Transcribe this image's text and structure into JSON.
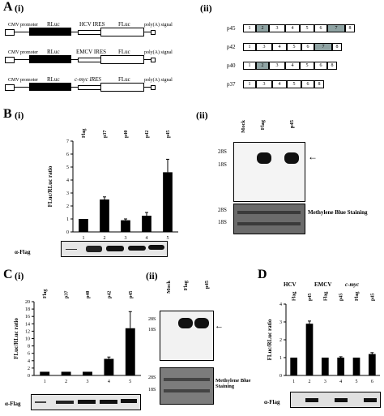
{
  "panelA": {
    "letter": "A",
    "sub_i": "(i)",
    "sub_ii": "(ii)",
    "constructs": [
      {
        "promoter": "CMV promoter",
        "rluc": "RLuc",
        "ires": "HCV IRES",
        "fluc": "FLuc",
        "polya": "poly(A) signal"
      },
      {
        "promoter": "CMV promoter",
        "rluc": "RLuc",
        "ires": "EMCV IRES",
        "fluc": "FLuc",
        "polya": "poly(A) signal"
      },
      {
        "promoter": "CMV promoter",
        "rluc": "RLuc",
        "ires": "c-myc IRES",
        "fluc": "FLuc",
        "polya": "poly(A) signal"
      }
    ],
    "isoforms": [
      {
        "name": "p45",
        "exons": [
          "1",
          "2",
          "3",
          "4",
          "5",
          "6",
          "7",
          "8"
        ]
      },
      {
        "name": "p42",
        "exons": [
          "1",
          "3",
          "4",
          "5",
          "6",
          "7",
          "8"
        ]
      },
      {
        "name": "p40",
        "exons": [
          "1",
          "2",
          "3",
          "4",
          "5",
          "6",
          "8"
        ]
      },
      {
        "name": "p37",
        "exons": [
          "1",
          "3",
          "4",
          "5",
          "6",
          "8"
        ]
      }
    ]
  },
  "panelB": {
    "letter": "B",
    "sub_i": "(i)",
    "sub_ii": "(ii)",
    "ylabel": "FLuc/RLuc ratio",
    "flag_label": "α-Flag",
    "northern_cols": [
      "Mock",
      "Flag",
      "p45"
    ],
    "methylene": "Methylene Blue Staining",
    "rrna": [
      "28S",
      "18S"
    ]
  },
  "panelC": {
    "letter": "C",
    "sub_i": "(i)",
    "sub_ii": "(ii)",
    "ylabel": "FLuc/RLuc ratio",
    "flag_label": "α-Flag",
    "northern_cols": [
      "Mock",
      "Flag",
      "p45"
    ],
    "methylene": "Methylene Blue Staining",
    "rrna": [
      "28S",
      "18S"
    ]
  },
  "panelD": {
    "letter": "D",
    "ylabel": "FLuc/RLuc ratio",
    "flag_label": "α-Flag",
    "groups": [
      "HCV",
      "EMCV",
      "c-myc"
    ]
  },
  "chart_data": [
    {
      "type": "bar",
      "categories": [
        "Flag",
        "p37",
        "p40",
        "p42",
        "p45"
      ],
      "lane_numbers": [
        "1",
        "2",
        "3",
        "4",
        "5"
      ],
      "values": [
        1.0,
        2.5,
        0.9,
        1.25,
        4.6
      ],
      "errors": [
        0,
        0.2,
        0.1,
        0.25,
        1.0
      ],
      "ylabel": "FLuc/RLuc ratio",
      "ylim": [
        0,
        7
      ],
      "yticks": [
        "0",
        "1",
        "2",
        "3",
        "4",
        "5",
        "6",
        "7"
      ]
    },
    {
      "type": "bar",
      "categories": [
        "Flag",
        "p37",
        "p40",
        "p42",
        "p45"
      ],
      "lane_numbers": [
        "1",
        "2",
        "3",
        "4",
        "5"
      ],
      "values": [
        1.0,
        1.0,
        1.0,
        4.5,
        12.8
      ],
      "errors": [
        0,
        0,
        0,
        0.5,
        4.5
      ],
      "ylabel": "FLuc/RLuc ratio",
      "ylim": [
        0,
        20
      ],
      "yticks": [
        "0",
        "2",
        "4",
        "6",
        "8",
        "10",
        "12",
        "14",
        "16",
        "18",
        "20"
      ]
    },
    {
      "type": "bar",
      "categories": [
        "Flag",
        "p45",
        "Flag",
        "p45",
        "Flag",
        "p45"
      ],
      "lane_numbers": [
        "1",
        "2",
        "3",
        "4",
        "5",
        "6"
      ],
      "values": [
        1.0,
        2.9,
        1.0,
        1.0,
        1.0,
        1.2
      ],
      "errors": [
        0,
        0.15,
        0,
        0.05,
        0,
        0.08
      ],
      "ylabel": "FLuc/RLuc ratio",
      "ylim": [
        0,
        4
      ],
      "yticks": [
        "0",
        "1",
        "2",
        "3",
        "4"
      ]
    }
  ]
}
